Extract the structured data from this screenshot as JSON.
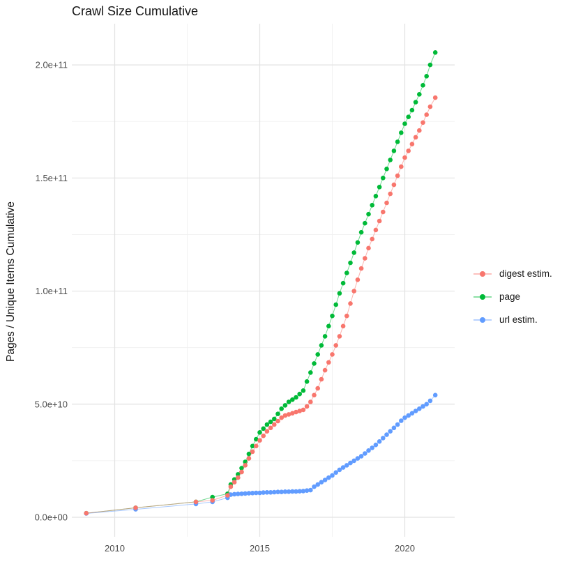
{
  "chart_data": {
    "type": "scatter",
    "title": "Crawl Size Cumulative",
    "xlabel": "",
    "ylabel": "Pages / Unique Items Cumulative",
    "values_unit": "1e9 (points stored as [year, value_in_billions])",
    "xlim_years": [
      2008.5,
      2021.7
    ],
    "ylim": [
      0,
      210000000000.0
    ],
    "grid": "major and minor, light gray on white panel",
    "legend_position": "right-middle",
    "x_ticks": [
      {
        "year": 2010,
        "label": "2010"
      },
      {
        "year": 2015,
        "label": "2015"
      },
      {
        "year": 2020,
        "label": "2020"
      }
    ],
    "x_minor_ticks_years": [
      2012.5,
      2017.5
    ],
    "y_ticks": [
      {
        "value_e9": 0,
        "label": "0.0e+00"
      },
      {
        "value_e9": 50,
        "label": "5.0e+10"
      },
      {
        "value_e9": 100,
        "label": "1.0e+11"
      },
      {
        "value_e9": 150,
        "label": "1.5e+11"
      },
      {
        "value_e9": 200,
        "label": "2.0e+11"
      }
    ],
    "y_minor_ticks_e9": [
      25,
      75,
      125,
      175
    ],
    "draw_order": [
      1,
      2,
      0
    ],
    "series": [
      {
        "name": "digest estim.",
        "color": "#F8766D",
        "points": [
          [
            2009.02,
            1.8
          ],
          [
            2010.72,
            4.2
          ],
          [
            2012.8,
            6.8
          ],
          [
            2013.37,
            7.5
          ],
          [
            2013.89,
            9.7
          ],
          [
            2014.0,
            13.5
          ],
          [
            2014.125,
            15.5
          ],
          [
            2014.25,
            17.5
          ],
          [
            2014.375,
            20.0
          ],
          [
            2014.5,
            23.0
          ],
          [
            2014.625,
            26.0
          ],
          [
            2014.75,
            29.0
          ],
          [
            2014.875,
            31.5
          ],
          [
            2015.0,
            34.0
          ],
          [
            2015.125,
            36.0
          ],
          [
            2015.25,
            38.0
          ],
          [
            2015.375,
            39.5
          ],
          [
            2015.5,
            41.0
          ],
          [
            2015.625,
            42.5
          ],
          [
            2015.75,
            44.0
          ],
          [
            2015.875,
            45.0
          ],
          [
            2016.0,
            45.5
          ],
          [
            2016.125,
            46.0
          ],
          [
            2016.25,
            46.5
          ],
          [
            2016.375,
            47.0
          ],
          [
            2016.5,
            47.5
          ],
          [
            2016.625,
            49.0
          ],
          [
            2016.75,
            51.0
          ],
          [
            2016.875,
            54.0
          ],
          [
            2017.0,
            57.0
          ],
          [
            2017.125,
            61.0
          ],
          [
            2017.25,
            65.0
          ],
          [
            2017.375,
            68.5
          ],
          [
            2017.5,
            72.0
          ],
          [
            2017.625,
            76.0
          ],
          [
            2017.75,
            80.0
          ],
          [
            2017.875,
            84.5
          ],
          [
            2018.0,
            89.0
          ],
          [
            2018.125,
            94.5
          ],
          [
            2018.25,
            100.0
          ],
          [
            2018.375,
            105.0
          ],
          [
            2018.5,
            110.0
          ],
          [
            2018.625,
            114.5
          ],
          [
            2018.75,
            119.0
          ],
          [
            2018.875,
            123.0
          ],
          [
            2019.0,
            127.0
          ],
          [
            2019.125,
            131.0
          ],
          [
            2019.25,
            135.0
          ],
          [
            2019.375,
            139.0
          ],
          [
            2019.5,
            143.0
          ],
          [
            2019.625,
            147.0
          ],
          [
            2019.75,
            151.0
          ],
          [
            2019.875,
            155.0
          ],
          [
            2020.0,
            159.0
          ],
          [
            2020.125,
            162.0
          ],
          [
            2020.25,
            165.0
          ],
          [
            2020.375,
            168.0
          ],
          [
            2020.5,
            171.0
          ],
          [
            2020.625,
            174.5
          ],
          [
            2020.75,
            178.0
          ],
          [
            2020.875,
            181.5
          ],
          [
            2021.05,
            185.5
          ]
        ]
      },
      {
        "name": "page",
        "color": "#00BA38",
        "points": [
          [
            2009.02,
            1.8
          ],
          [
            2010.72,
            4.2
          ],
          [
            2012.8,
            6.8
          ],
          [
            2013.37,
            8.9
          ],
          [
            2013.89,
            10.4
          ],
          [
            2014.0,
            14.5
          ],
          [
            2014.125,
            16.7
          ],
          [
            2014.25,
            19.0
          ],
          [
            2014.375,
            21.7
          ],
          [
            2014.5,
            24.5
          ],
          [
            2014.625,
            28.0
          ],
          [
            2014.75,
            31.5
          ],
          [
            2014.875,
            34.5
          ],
          [
            2015.0,
            37.5
          ],
          [
            2015.125,
            39.2
          ],
          [
            2015.25,
            41.0
          ],
          [
            2015.375,
            42.2
          ],
          [
            2015.5,
            43.5
          ],
          [
            2015.625,
            45.7
          ],
          [
            2015.75,
            48.0
          ],
          [
            2015.875,
            49.5
          ],
          [
            2016.0,
            51.0
          ],
          [
            2016.125,
            52.0
          ],
          [
            2016.25,
            53.0
          ],
          [
            2016.375,
            54.5
          ],
          [
            2016.5,
            56.0
          ],
          [
            2016.625,
            60.0
          ],
          [
            2016.75,
            64.0
          ],
          [
            2016.875,
            68.0
          ],
          [
            2017.0,
            72.0
          ],
          [
            2017.125,
            76.0
          ],
          [
            2017.25,
            80.0
          ],
          [
            2017.375,
            84.5
          ],
          [
            2017.5,
            89.0
          ],
          [
            2017.625,
            94.0
          ],
          [
            2017.75,
            99.0
          ],
          [
            2017.875,
            103.5
          ],
          [
            2018.0,
            108.0
          ],
          [
            2018.125,
            112.5
          ],
          [
            2018.25,
            117.0
          ],
          [
            2018.375,
            121.5
          ],
          [
            2018.5,
            126.0
          ],
          [
            2018.625,
            130.0
          ],
          [
            2018.75,
            134.0
          ],
          [
            2018.875,
            138.0
          ],
          [
            2019.0,
            142.0
          ],
          [
            2019.125,
            146.0
          ],
          [
            2019.25,
            150.0
          ],
          [
            2019.375,
            154.0
          ],
          [
            2019.5,
            158.0
          ],
          [
            2019.625,
            162.0
          ],
          [
            2019.75,
            166.0
          ],
          [
            2019.875,
            170.0
          ],
          [
            2020.0,
            174.0
          ],
          [
            2020.125,
            177.0
          ],
          [
            2020.25,
            180.0
          ],
          [
            2020.375,
            183.5
          ],
          [
            2020.5,
            187.0
          ],
          [
            2020.625,
            191.0
          ],
          [
            2020.75,
            195.0
          ],
          [
            2020.875,
            200.0
          ],
          [
            2021.05,
            205.5
          ]
        ]
      },
      {
        "name": "url estim.",
        "color": "#619CFF",
        "points": [
          [
            2009.02,
            1.7
          ],
          [
            2010.72,
            3.5
          ],
          [
            2012.8,
            5.9
          ],
          [
            2013.37,
            6.8
          ],
          [
            2013.89,
            8.6
          ],
          [
            2014.0,
            10.0
          ],
          [
            2014.125,
            10.2
          ],
          [
            2014.25,
            10.3
          ],
          [
            2014.375,
            10.4
          ],
          [
            2014.5,
            10.5
          ],
          [
            2014.625,
            10.6
          ],
          [
            2014.75,
            10.7
          ],
          [
            2014.875,
            10.8
          ],
          [
            2015.0,
            10.8
          ],
          [
            2015.125,
            10.9
          ],
          [
            2015.25,
            11.0
          ],
          [
            2015.375,
            11.0
          ],
          [
            2015.5,
            11.1
          ],
          [
            2015.625,
            11.2
          ],
          [
            2015.75,
            11.2
          ],
          [
            2015.875,
            11.3
          ],
          [
            2016.0,
            11.3
          ],
          [
            2016.125,
            11.4
          ],
          [
            2016.25,
            11.4
          ],
          [
            2016.375,
            11.5
          ],
          [
            2016.5,
            11.6
          ],
          [
            2016.625,
            11.8
          ],
          [
            2016.75,
            12.0
          ],
          [
            2016.875,
            13.5
          ],
          [
            2017.0,
            14.5
          ],
          [
            2017.125,
            15.5
          ],
          [
            2017.25,
            16.5
          ],
          [
            2017.375,
            17.5
          ],
          [
            2017.5,
            18.5
          ],
          [
            2017.625,
            19.8
          ],
          [
            2017.75,
            21.0
          ],
          [
            2017.875,
            22.0
          ],
          [
            2018.0,
            23.0
          ],
          [
            2018.125,
            24.0
          ],
          [
            2018.25,
            25.0
          ],
          [
            2018.375,
            26.0
          ],
          [
            2018.5,
            27.0
          ],
          [
            2018.625,
            28.2
          ],
          [
            2018.75,
            29.5
          ],
          [
            2018.875,
            30.7
          ],
          [
            2019.0,
            32.0
          ],
          [
            2019.125,
            33.5
          ],
          [
            2019.25,
            35.0
          ],
          [
            2019.375,
            36.5
          ],
          [
            2019.5,
            38.0
          ],
          [
            2019.625,
            39.5
          ],
          [
            2019.75,
            41.0
          ],
          [
            2019.875,
            42.7
          ],
          [
            2020.0,
            44.0
          ],
          [
            2020.125,
            45.0
          ],
          [
            2020.25,
            46.0
          ],
          [
            2020.375,
            47.0
          ],
          [
            2020.5,
            48.0
          ],
          [
            2020.625,
            49.0
          ],
          [
            2020.75,
            50.0
          ],
          [
            2020.875,
            51.5
          ],
          [
            2021.05,
            54.0
          ]
        ]
      }
    ],
    "style": {
      "major_grid_color": "#E2E2E2",
      "minor_grid_color": "#EFEFEF",
      "axis_text_color": "#4D4D4D",
      "title_color": "#141414",
      "background": "#FFFFFF",
      "point_radius_px": 3.3
    }
  }
}
